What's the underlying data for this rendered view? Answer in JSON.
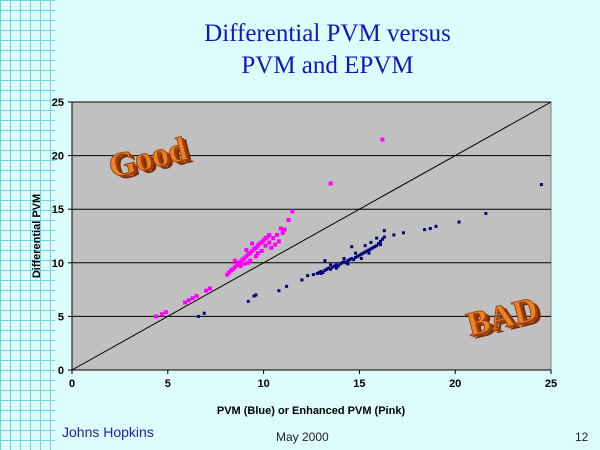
{
  "slide": {
    "title_line1": "Differential PVM versus",
    "title_line2": "PVM and EPVM",
    "footer_left": "Johns Hopkins",
    "footer_center": "May 2000",
    "slide_number": "12"
  },
  "annotations": {
    "good_label": "Good",
    "bad_label": "BAD"
  },
  "colors": {
    "title": "#1515c0",
    "plot_background": "#c0c0c0",
    "pvm_series": "#00007a",
    "epvm_series": "#ff00ff",
    "diagonal": "#000000",
    "wordart_face": "#f08020",
    "wordart_shadow": "#7a2a08"
  },
  "chart_data": {
    "type": "scatter",
    "title": "",
    "xlabel": "PVM (Blue) or Enhanced PVM (Pink)",
    "ylabel": "Differential PVM",
    "xlim": [
      0,
      25
    ],
    "ylim": [
      0,
      25
    ],
    "xticks": [
      "0",
      "5",
      "10",
      "15",
      "20",
      "25"
    ],
    "yticks": [
      "0",
      "5",
      "10",
      "15",
      "20",
      "25"
    ],
    "grid": "horizontal",
    "legend": "none",
    "reference_line": {
      "x": [
        0,
        25
      ],
      "y": [
        0,
        25
      ]
    },
    "series": [
      {
        "color": "#00007a",
        "points": [
          [
            6.6,
            5.0
          ],
          [
            6.9,
            5.3
          ],
          [
            9.2,
            6.4
          ],
          [
            9.5,
            6.9
          ],
          [
            9.6,
            7.0
          ],
          [
            10.8,
            7.4
          ],
          [
            11.2,
            7.8
          ],
          [
            12.6,
            8.9
          ],
          [
            12.8,
            9.0
          ],
          [
            12.9,
            9.1
          ],
          [
            13.0,
            9.2
          ],
          [
            13.1,
            9.1
          ],
          [
            13.2,
            9.3
          ],
          [
            13.3,
            9.4
          ],
          [
            13.4,
            9.5
          ],
          [
            13.5,
            9.4
          ],
          [
            13.6,
            9.6
          ],
          [
            13.7,
            9.7
          ],
          [
            13.8,
            9.8
          ],
          [
            13.9,
            9.7
          ],
          [
            14.0,
            9.9
          ],
          [
            14.1,
            10.0
          ],
          [
            14.2,
            10.1
          ],
          [
            14.3,
            10.0
          ],
          [
            14.4,
            10.2
          ],
          [
            14.5,
            10.3
          ],
          [
            14.6,
            10.4
          ],
          [
            14.7,
            10.3
          ],
          [
            14.8,
            10.5
          ],
          [
            14.9,
            10.6
          ],
          [
            15.0,
            10.7
          ],
          [
            15.1,
            10.8
          ],
          [
            15.2,
            10.9
          ],
          [
            15.3,
            11.0
          ],
          [
            15.4,
            11.1
          ],
          [
            15.5,
            11.2
          ],
          [
            15.6,
            11.3
          ],
          [
            15.7,
            11.4
          ],
          [
            15.8,
            11.5
          ],
          [
            15.9,
            11.6
          ],
          [
            16.0,
            11.8
          ],
          [
            16.1,
            12.0
          ],
          [
            16.2,
            12.2
          ],
          [
            16.3,
            12.4
          ],
          [
            13.0,
            9.0
          ],
          [
            13.5,
            9.8
          ],
          [
            14.2,
            10.4
          ],
          [
            14.8,
            10.9
          ],
          [
            15.3,
            11.6
          ],
          [
            15.6,
            11.9
          ],
          [
            15.9,
            12.3
          ],
          [
            16.1,
            11.7
          ],
          [
            14.4,
            9.9
          ],
          [
            13.8,
            9.5
          ],
          [
            15.1,
            10.4
          ],
          [
            15.5,
            10.9
          ],
          [
            12.0,
            8.4
          ],
          [
            12.3,
            8.8
          ],
          [
            13.2,
            10.2
          ],
          [
            14.6,
            11.5
          ],
          [
            16.3,
            13.0
          ],
          [
            16.8,
            12.6
          ],
          [
            17.3,
            12.8
          ],
          [
            18.4,
            13.1
          ],
          [
            18.7,
            13.2
          ],
          [
            19.0,
            13.4
          ],
          [
            20.2,
            13.8
          ],
          [
            21.6,
            14.6
          ],
          [
            24.5,
            17.3
          ]
        ]
      },
      {
        "color": "#ff00ff",
        "points": [
          [
            4.4,
            5.0
          ],
          [
            4.7,
            5.2
          ],
          [
            4.9,
            5.4
          ],
          [
            5.9,
            6.3
          ],
          [
            6.1,
            6.5
          ],
          [
            6.3,
            6.7
          ],
          [
            6.5,
            6.9
          ],
          [
            7.0,
            7.4
          ],
          [
            7.2,
            7.6
          ],
          [
            8.1,
            8.9
          ],
          [
            8.2,
            9.1
          ],
          [
            8.3,
            9.3
          ],
          [
            8.4,
            9.4
          ],
          [
            8.5,
            9.6
          ],
          [
            8.6,
            9.8
          ],
          [
            8.7,
            10.0
          ],
          [
            8.8,
            10.1
          ],
          [
            8.9,
            10.3
          ],
          [
            9.0,
            10.4
          ],
          [
            9.1,
            10.6
          ],
          [
            9.2,
            10.8
          ],
          [
            9.3,
            10.9
          ],
          [
            9.4,
            11.1
          ],
          [
            9.5,
            11.3
          ],
          [
            9.6,
            11.4
          ],
          [
            9.7,
            11.6
          ],
          [
            9.8,
            11.8
          ],
          [
            9.9,
            11.9
          ],
          [
            10.0,
            12.1
          ],
          [
            10.1,
            12.3
          ],
          [
            10.2,
            12.4
          ],
          [
            10.3,
            12.6
          ],
          [
            8.8,
            9.7
          ],
          [
            9.0,
            9.9
          ],
          [
            9.3,
            10.2
          ],
          [
            9.6,
            10.6
          ],
          [
            9.9,
            11.1
          ],
          [
            10.1,
            11.6
          ],
          [
            10.3,
            11.9
          ],
          [
            10.5,
            12.3
          ],
          [
            10.7,
            12.6
          ],
          [
            10.8,
            12.0
          ],
          [
            11.0,
            12.8
          ],
          [
            11.1,
            13.1
          ],
          [
            11.3,
            14.0
          ],
          [
            11.5,
            14.8
          ],
          [
            9.2,
            10.0
          ],
          [
            9.7,
            10.9
          ],
          [
            10.4,
            11.4
          ],
          [
            8.5,
            10.2
          ],
          [
            9.4,
            11.8
          ],
          [
            9.1,
            11.2
          ],
          [
            10.6,
            11.7
          ],
          [
            10.9,
            13.2
          ],
          [
            13.5,
            17.4
          ],
          [
            16.2,
            21.5
          ]
        ]
      }
    ]
  }
}
